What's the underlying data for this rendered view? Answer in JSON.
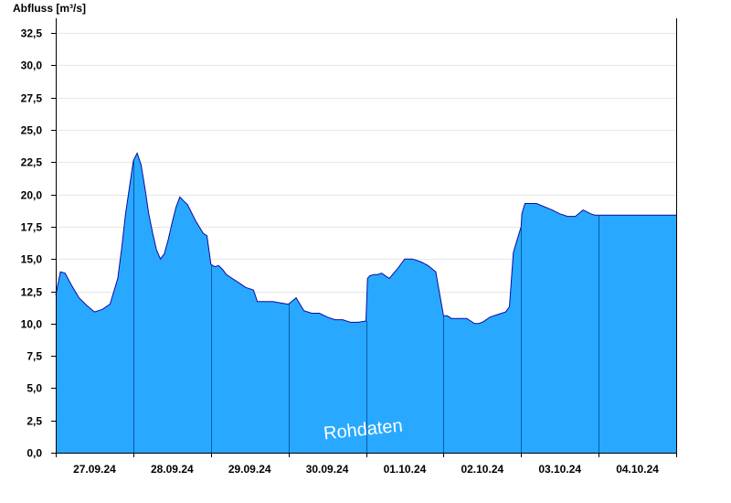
{
  "chart_data": {
    "type": "area",
    "ylabel": "Abfluss [m³/s]",
    "ylim": [
      0,
      33.5
    ],
    "yticks": [
      "0,0",
      "2,5",
      "5,0",
      "7,5",
      "10,0",
      "12,5",
      "15,0",
      "17,5",
      "20,0",
      "22,5",
      "25,0",
      "27,5",
      "30,0",
      "32,5"
    ],
    "xlim_days": [
      0,
      8
    ],
    "xtick_labels": [
      "27.09.24",
      "28.09.24",
      "29.09.24",
      "30.09.24",
      "01.10.24",
      "02.10.24",
      "03.10.24",
      "04.10.24"
    ],
    "grid": "horizontal",
    "fill_color": "#29a8ff",
    "line_color": "#0a0aa0",
    "annotation": "Rohdaten",
    "series": [
      {
        "x": [
          0.0,
          0.06,
          0.12,
          0.2,
          0.3,
          0.4,
          0.5,
          0.6,
          0.7,
          0.8,
          0.85,
          0.9,
          1.0,
          1.05,
          1.1,
          1.15,
          1.2,
          1.25,
          1.3,
          1.35,
          1.4,
          1.45,
          1.5,
          1.55,
          1.6,
          1.65,
          1.7,
          1.75,
          1.8,
          1.85,
          1.9,
          1.95,
          2.0,
          2.05,
          2.1,
          2.15,
          2.2,
          2.25,
          2.3,
          2.35,
          2.4,
          2.45,
          2.5,
          2.55,
          2.6,
          2.7,
          2.8,
          2.9,
          3.0,
          3.1,
          3.2,
          3.3,
          3.4,
          3.5,
          3.6,
          3.7,
          3.8,
          3.9,
          4.0,
          4.02,
          4.05,
          4.1,
          4.15,
          4.2,
          4.3,
          4.4,
          4.5,
          4.6,
          4.7,
          4.8,
          4.9,
          5.0,
          5.01,
          5.05,
          5.1,
          5.2,
          5.3,
          5.35,
          5.4,
          5.45,
          5.5,
          5.55,
          5.6,
          5.7,
          5.8,
          5.85,
          5.9,
          5.95,
          6.0,
          6.01,
          6.05,
          6.2,
          6.4,
          6.5,
          6.6,
          6.7,
          6.8,
          6.9,
          6.95,
          7.0,
          7.02,
          7.05,
          7.1,
          7.15,
          7.2,
          7.3,
          7.4,
          7.5,
          7.6,
          7.7,
          7.8,
          7.9,
          8.0
        ],
        "y": [
          12.2,
          14.0,
          13.9,
          13.0,
          12.0,
          11.4,
          10.9,
          11.1,
          11.5,
          13.5,
          15.8,
          18.5,
          22.6,
          23.2,
          22.3,
          20.5,
          18.5,
          17.0,
          15.7,
          15.0,
          15.4,
          16.5,
          17.8,
          19.0,
          19.8,
          19.5,
          19.2,
          18.6,
          18.0,
          17.5,
          17.0,
          16.8,
          14.6,
          14.4,
          14.5,
          14.2,
          13.8,
          13.6,
          13.4,
          13.2,
          13.0,
          12.8,
          12.7,
          12.6,
          11.7,
          11.7,
          11.7,
          11.6,
          11.5,
          12.0,
          11.0,
          10.8,
          10.8,
          10.5,
          10.3,
          10.3,
          10.1,
          10.1,
          10.2,
          13.5,
          13.7,
          13.8,
          13.8,
          13.9,
          13.5,
          14.2,
          15.0,
          15.0,
          14.8,
          14.5,
          14.0,
          10.6,
          10.6,
          10.6,
          10.4,
          10.4,
          10.4,
          10.2,
          10.0,
          10.0,
          10.1,
          10.3,
          10.5,
          10.7,
          10.9,
          11.3,
          15.5,
          16.5,
          17.5,
          18.5,
          19.3,
          19.3,
          18.8,
          18.5,
          18.3,
          18.3,
          18.8,
          18.5,
          18.4,
          18.4,
          18.4,
          18.4,
          18.4,
          18.4,
          18.4,
          18.4,
          18.4,
          18.4,
          18.4,
          18.4,
          18.4,
          18.4,
          18.4
        ]
      }
    ]
  }
}
